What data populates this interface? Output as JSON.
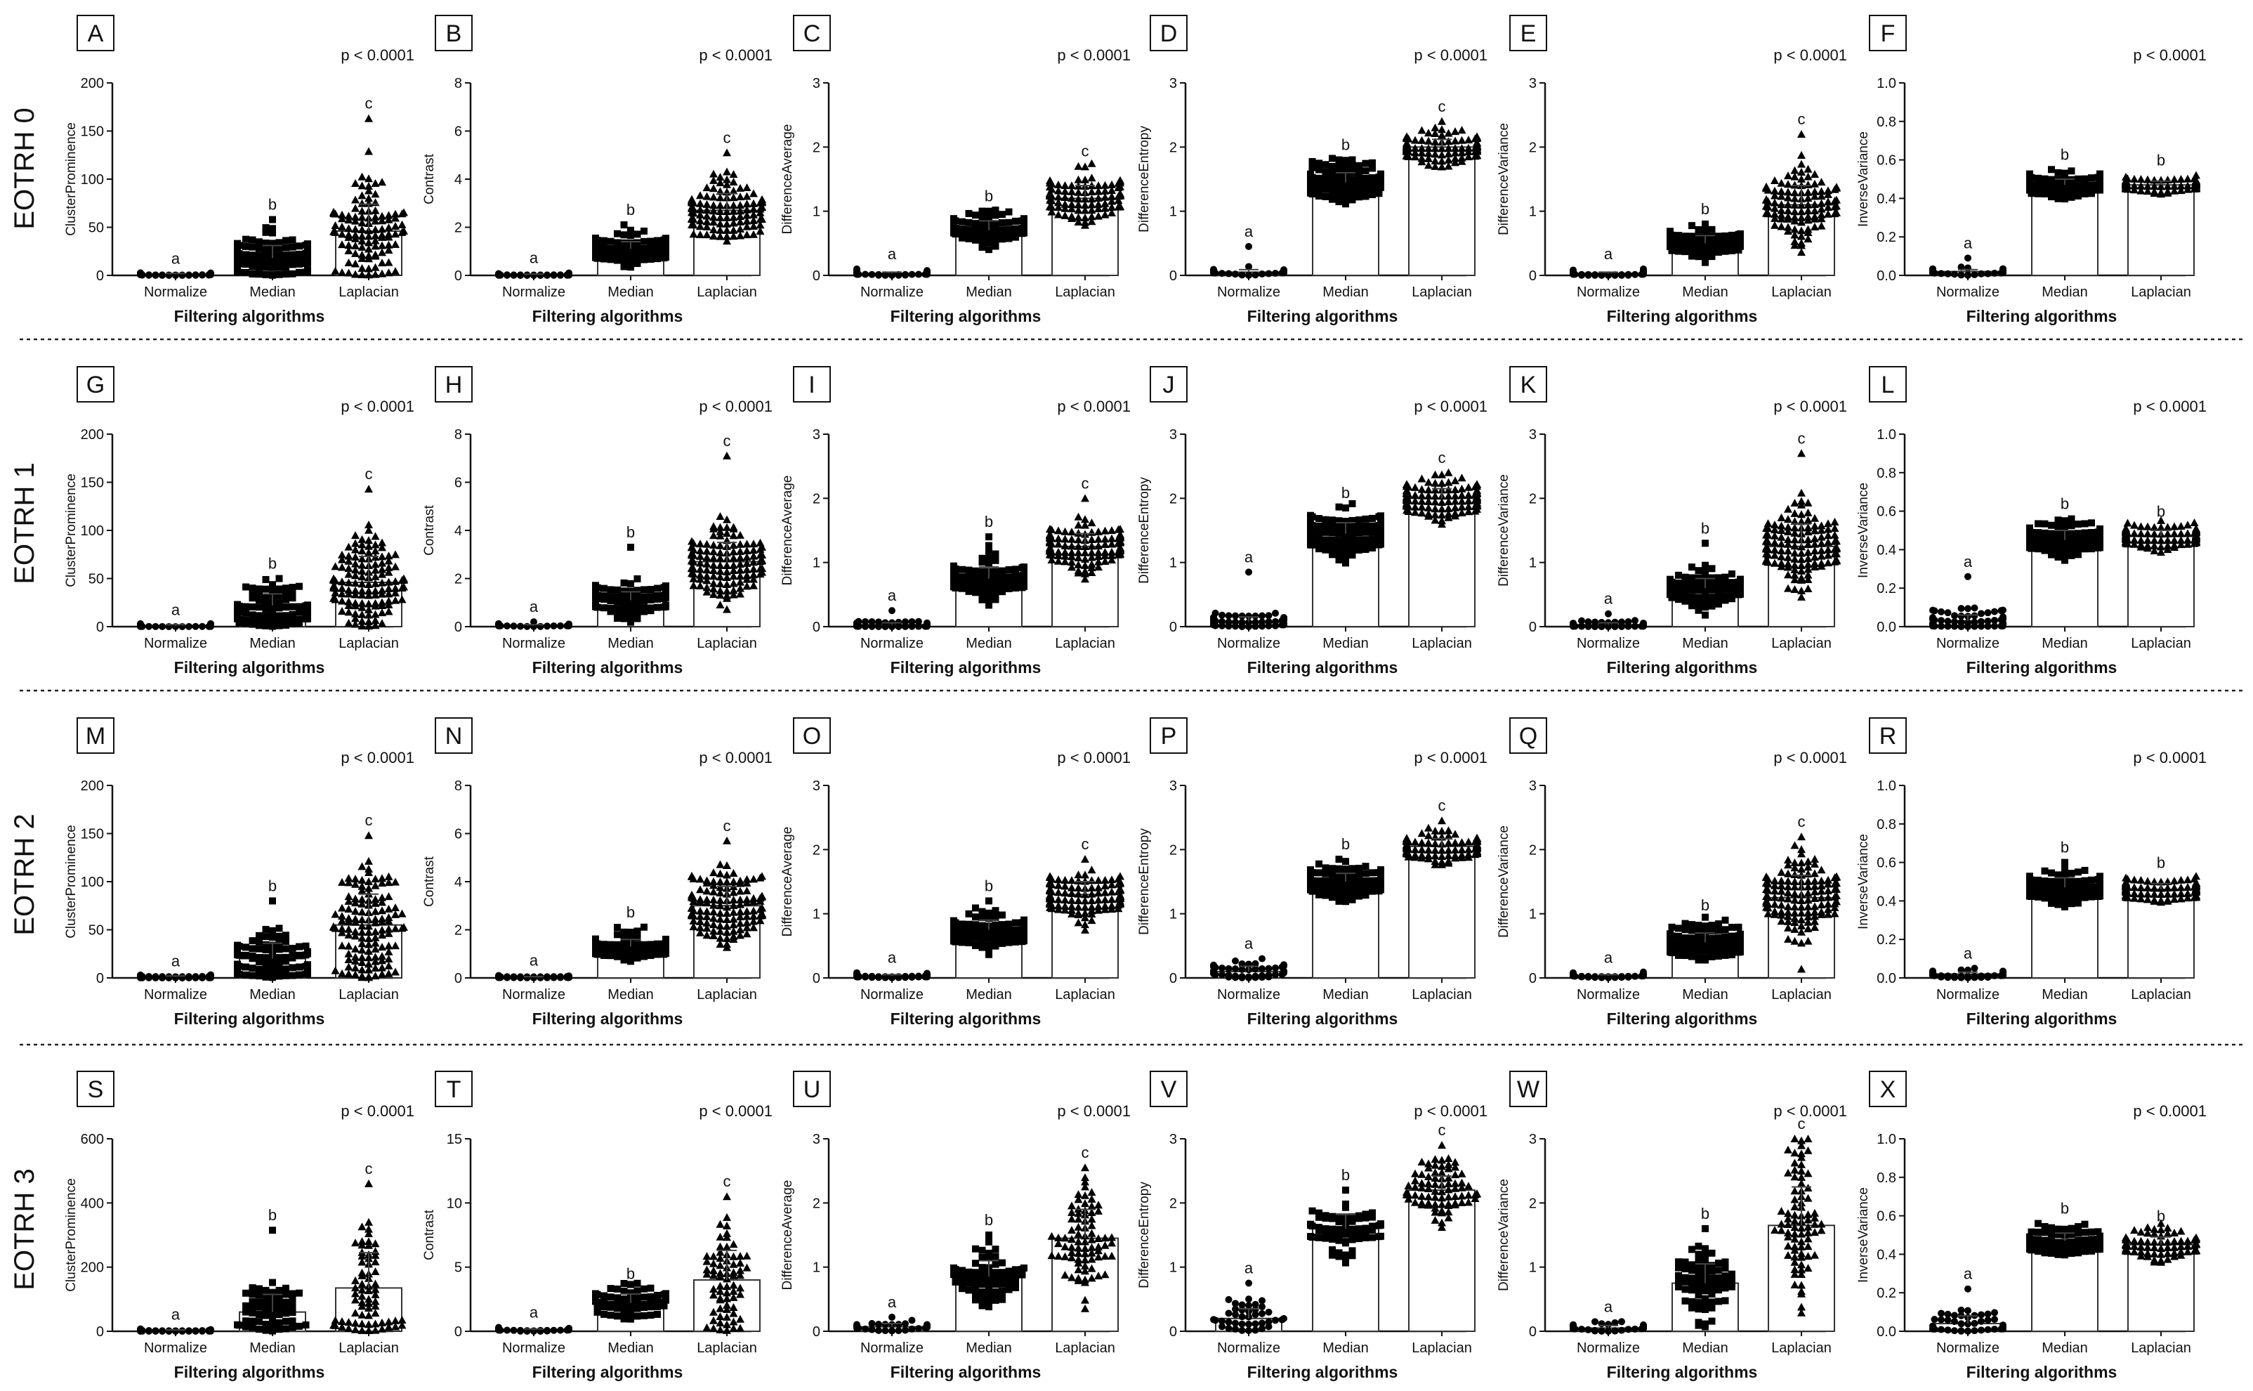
{
  "figure": {
    "row_labels": [
      "EOTRH 0",
      "EOTRH 1",
      "EOTRH 2",
      "EOTRH 3"
    ],
    "columns": [
      "ClusterProminence",
      "Contrast",
      "DifferenceAverage",
      "DifferenceEntropy",
      "DifferenceVariance",
      "InverseVariance"
    ]
  },
  "chart_data": [
    {
      "type": "scatter",
      "panel": "A",
      "title": "",
      "p_value": "p < 0.0001",
      "xlabel": "Filtering algorithms",
      "ylabel": "ClusterProminence",
      "categories": [
        "Normalize",
        "Median",
        "Laplacian"
      ],
      "ylim": [
        0,
        200
      ],
      "yticks": [
        "0",
        "50",
        "100",
        "150",
        "200"
      ],
      "means": [
        1,
        18,
        46
      ],
      "sd": [
        1,
        13,
        28
      ],
      "max_outliers": [
        2,
        58,
        163
      ],
      "n_points": [
        60,
        90,
        110
      ],
      "letters": [
        "a",
        "b",
        "c"
      ]
    },
    {
      "type": "scatter",
      "panel": "B",
      "title": "",
      "p_value": "p < 0.0001",
      "xlabel": "Filtering algorithms",
      "ylabel": "Contrast",
      "categories": [
        "Normalize",
        "Median",
        "Laplacian"
      ],
      "ylim": [
        0,
        8
      ],
      "yticks": [
        "0",
        "2",
        "4",
        "6",
        "8"
      ],
      "means": [
        0.03,
        1.1,
        2.7
      ],
      "sd": [
        0.02,
        0.3,
        0.7
      ],
      "max_outliers": [
        0.1,
        2.1,
        5.1
      ],
      "n_points": [
        60,
        90,
        110
      ],
      "letters": [
        "a",
        "b",
        "c"
      ]
    },
    {
      "type": "scatter",
      "panel": "C",
      "title": "",
      "p_value": "p < 0.0001",
      "xlabel": "Filtering algorithms",
      "ylabel": "DifferenceAverage",
      "categories": [
        "Normalize",
        "Median",
        "Laplacian"
      ],
      "ylim": [
        0,
        3
      ],
      "yticks": [
        "0",
        "1",
        "2",
        "3"
      ],
      "means": [
        0.03,
        0.7,
        1.2
      ],
      "sd": [
        0.02,
        0.15,
        0.2
      ],
      "max_outliers": [
        0.1,
        1.0,
        1.7
      ],
      "n_points": [
        60,
        90,
        110
      ],
      "letters": [
        "a",
        "b",
        "c"
      ]
    },
    {
      "type": "scatter",
      "panel": "D",
      "title": "",
      "p_value": "p < 0.0001",
      "xlabel": "Filtering algorithms",
      "ylabel": "DifferenceEntropy",
      "categories": [
        "Normalize",
        "Median",
        "Laplacian"
      ],
      "ylim": [
        0,
        3
      ],
      "yticks": [
        "0",
        "1",
        "2",
        "3"
      ],
      "means": [
        0.05,
        1.45,
        2.0
      ],
      "sd": [
        0.04,
        0.15,
        0.12
      ],
      "max_outliers": [
        0.45,
        1.8,
        2.4
      ],
      "n_points": [
        30,
        100,
        120
      ],
      "letters": [
        "a",
        "b",
        "c"
      ]
    },
    {
      "type": "scatter",
      "panel": "E",
      "title": "",
      "p_value": "p < 0.0001",
      "xlabel": "Filtering algorithms",
      "ylabel": "DifferenceVariance",
      "categories": [
        "Normalize",
        "Median",
        "Laplacian"
      ],
      "ylim": [
        0,
        3
      ],
      "yticks": [
        "0",
        "1",
        "2",
        "3"
      ],
      "means": [
        0.03,
        0.5,
        1.1
      ],
      "sd": [
        0.02,
        0.12,
        0.3
      ],
      "max_outliers": [
        0.1,
        0.8,
        2.2
      ],
      "n_points": [
        60,
        90,
        110
      ],
      "letters": [
        "a",
        "b",
        "c"
      ]
    },
    {
      "type": "scatter",
      "panel": "F",
      "title": "",
      "p_value": "p < 0.0001",
      "xlabel": "Filtering algorithms",
      "ylabel": "InverseVariance",
      "categories": [
        "Normalize",
        "Median",
        "Laplacian"
      ],
      "ylim": [
        0,
        1
      ],
      "yticks": [
        "0.0",
        "0.2",
        "0.4",
        "0.6",
        "0.8",
        "1.0"
      ],
      "means": [
        0.02,
        0.47,
        0.47
      ],
      "sd": [
        0.01,
        0.03,
        0.02
      ],
      "max_outliers": [
        0.09,
        0.55,
        0.52
      ],
      "n_points": [
        60,
        100,
        110
      ],
      "letters": [
        "a",
        "b",
        "b"
      ]
    },
    {
      "type": "scatter",
      "panel": "G",
      "title": "",
      "p_value": "p < 0.0001",
      "xlabel": "Filtering algorithms",
      "ylabel": "ClusterProminence",
      "categories": [
        "Normalize",
        "Median",
        "Laplacian"
      ],
      "ylim": [
        0,
        200
      ],
      "yticks": [
        "0",
        "50",
        "100",
        "150",
        "200"
      ],
      "means": [
        1,
        22,
        46
      ],
      "sd": [
        1,
        12,
        27
      ],
      "max_outliers": [
        2,
        50,
        143
      ],
      "n_points": [
        60,
        90,
        130
      ],
      "letters": [
        "a",
        "b",
        "c"
      ]
    },
    {
      "type": "scatter",
      "panel": "H",
      "title": "",
      "p_value": "p < 0.0001",
      "xlabel": "Filtering algorithms",
      "ylabel": "Contrast",
      "categories": [
        "Normalize",
        "Median",
        "Laplacian"
      ],
      "ylim": [
        0,
        8
      ],
      "yticks": [
        "0",
        "2",
        "4",
        "6",
        "8"
      ],
      "means": [
        0.05,
        1.1,
        2.7
      ],
      "sd": [
        0.03,
        0.35,
        0.8
      ],
      "max_outliers": [
        0.2,
        3.3,
        7.1
      ],
      "n_points": [
        60,
        90,
        130
      ],
      "letters": [
        "a",
        "b",
        "c"
      ]
    },
    {
      "type": "scatter",
      "panel": "I",
      "title": "",
      "p_value": "p < 0.0001",
      "xlabel": "Filtering algorithms",
      "ylabel": "DifferenceAverage",
      "categories": [
        "Normalize",
        "Median",
        "Laplacian"
      ],
      "ylim": [
        0,
        3
      ],
      "yticks": [
        "0",
        "1",
        "2",
        "3"
      ],
      "means": [
        0.03,
        0.75,
        1.25
      ],
      "sd": [
        0.03,
        0.18,
        0.2
      ],
      "max_outliers": [
        0.25,
        1.4,
        2.0
      ],
      "n_points": [
        60,
        100,
        130
      ],
      "letters": [
        "a",
        "b",
        "c"
      ]
    },
    {
      "type": "scatter",
      "panel": "J",
      "title": "",
      "p_value": "p < 0.0001",
      "xlabel": "Filtering algorithms",
      "ylabel": "DifferenceEntropy",
      "categories": [
        "Normalize",
        "Median",
        "Laplacian"
      ],
      "ylim": [
        0,
        3
      ],
      "yticks": [
        "0",
        "1",
        "2",
        "3"
      ],
      "means": [
        0.08,
        1.45,
        2.0
      ],
      "sd": [
        0.07,
        0.17,
        0.15
      ],
      "max_outliers": [
        0.85,
        1.85,
        2.4
      ],
      "n_points": [
        60,
        110,
        130
      ],
      "letters": [
        "a",
        "b",
        "c"
      ]
    },
    {
      "type": "scatter",
      "panel": "K",
      "title": "",
      "p_value": "p < 0.0001",
      "xlabel": "Filtering algorithms",
      "ylabel": "DifferenceVariance",
      "categories": [
        "Normalize",
        "Median",
        "Laplacian"
      ],
      "ylim": [
        0,
        3
      ],
      "yticks": [
        "0",
        "1",
        "2",
        "3"
      ],
      "means": [
        0.03,
        0.6,
        1.25
      ],
      "sd": [
        0.03,
        0.15,
        0.35
      ],
      "max_outliers": [
        0.2,
        1.3,
        2.7
      ],
      "n_points": [
        60,
        100,
        130
      ],
      "letters": [
        "a",
        "b",
        "c"
      ]
    },
    {
      "type": "scatter",
      "panel": "L",
      "title": "",
      "p_value": "p < 0.0001",
      "xlabel": "Filtering algorithms",
      "ylabel": "InverseVariance",
      "categories": [
        "Normalize",
        "Median",
        "Laplacian"
      ],
      "ylim": [
        0,
        1
      ],
      "yticks": [
        "0.0",
        "0.2",
        "0.4",
        "0.6",
        "0.8",
        "1.0"
      ],
      "means": [
        0.03,
        0.45,
        0.47
      ],
      "sd": [
        0.03,
        0.05,
        0.03
      ],
      "max_outliers": [
        0.26,
        0.56,
        0.52
      ],
      "n_points": [
        60,
        110,
        120
      ],
      "letters": [
        "a",
        "b",
        "b"
      ]
    },
    {
      "type": "scatter",
      "panel": "M",
      "title": "",
      "p_value": "p < 0.0001",
      "xlabel": "Filtering algorithms",
      "ylabel": "ClusterProminence",
      "categories": [
        "Normalize",
        "Median",
        "Laplacian"
      ],
      "ylim": [
        0,
        200
      ],
      "yticks": [
        "0",
        "50",
        "100",
        "150",
        "200"
      ],
      "means": [
        1,
        20,
        55
      ],
      "sd": [
        1,
        16,
        32
      ],
      "max_outliers": [
        2,
        80,
        148
      ],
      "n_points": [
        50,
        90,
        130
      ],
      "letters": [
        "a",
        "b",
        "c"
      ]
    },
    {
      "type": "scatter",
      "panel": "N",
      "title": "",
      "p_value": "p < 0.0001",
      "xlabel": "Filtering algorithms",
      "ylabel": "Contrast",
      "categories": [
        "Normalize",
        "Median",
        "Laplacian"
      ],
      "ylim": [
        0,
        8
      ],
      "yticks": [
        "0",
        "2",
        "4",
        "6",
        "8"
      ],
      "means": [
        0.03,
        1.3,
        3.0
      ],
      "sd": [
        0.02,
        0.3,
        0.8
      ],
      "max_outliers": [
        0.1,
        2.1,
        5.7
      ],
      "n_points": [
        50,
        90,
        130
      ],
      "letters": [
        "a",
        "b",
        "c"
      ]
    },
    {
      "type": "scatter",
      "panel": "O",
      "title": "",
      "p_value": "p < 0.0001",
      "xlabel": "Filtering algorithms",
      "ylabel": "DifferenceAverage",
      "categories": [
        "Normalize",
        "Median",
        "Laplacian"
      ],
      "ylim": [
        0,
        3
      ],
      "yticks": [
        "0",
        "1",
        "2",
        "3"
      ],
      "means": [
        0.03,
        0.75,
        1.3
      ],
      "sd": [
        0.02,
        0.15,
        0.2
      ],
      "max_outliers": [
        0.08,
        1.2,
        1.85
      ],
      "n_points": [
        50,
        100,
        130
      ],
      "letters": [
        "a",
        "b",
        "c"
      ]
    },
    {
      "type": "scatter",
      "panel": "P",
      "title": "",
      "p_value": "p < 0.0001",
      "xlabel": "Filtering algorithms",
      "ylabel": "DifferenceEntropy",
      "categories": [
        "Normalize",
        "Median",
        "Laplacian"
      ],
      "ylim": [
        0,
        3
      ],
      "yticks": [
        "0",
        "1",
        "2",
        "3"
      ],
      "means": [
        0.1,
        1.5,
        2.05
      ],
      "sd": [
        0.08,
        0.13,
        0.12
      ],
      "max_outliers": [
        0.3,
        1.85,
        2.45
      ],
      "n_points": [
        50,
        110,
        130
      ],
      "letters": [
        "a",
        "b",
        "c"
      ]
    },
    {
      "type": "scatter",
      "panel": "Q",
      "title": "",
      "p_value": "p < 0.0001",
      "xlabel": "Filtering algorithms",
      "ylabel": "DifferenceVariance",
      "categories": [
        "Normalize",
        "Median",
        "Laplacian"
      ],
      "ylim": [
        0,
        3
      ],
      "yticks": [
        "0",
        "1",
        "2",
        "3"
      ],
      "means": [
        0.03,
        0.55,
        1.25
      ],
      "sd": [
        0.02,
        0.15,
        0.35
      ],
      "max_outliers": [
        0.08,
        0.9,
        2.2
      ],
      "n_points": [
        50,
        100,
        130
      ],
      "letters": [
        "a",
        "b",
        "c"
      ]
    },
    {
      "type": "scatter",
      "panel": "R",
      "title": "",
      "p_value": "p < 0.0001",
      "xlabel": "Filtering algorithms",
      "ylabel": "InverseVariance",
      "categories": [
        "Normalize",
        "Median",
        "Laplacian"
      ],
      "ylim": [
        0,
        1
      ],
      "yticks": [
        "0.0",
        "0.2",
        "0.4",
        "0.6",
        "0.8",
        "1.0"
      ],
      "means": [
        0.02,
        0.47,
        0.46
      ],
      "sd": [
        0.01,
        0.05,
        0.03
      ],
      "max_outliers": [
        0.05,
        0.6,
        0.52
      ],
      "n_points": [
        50,
        110,
        120
      ],
      "letters": [
        "a",
        "b",
        "b"
      ]
    },
    {
      "type": "scatter",
      "panel": "S",
      "title": "",
      "p_value": "p < 0.0001",
      "xlabel": "Filtering algorithms",
      "ylabel": "ClusterProminence",
      "categories": [
        "Normalize",
        "Median",
        "Laplacian"
      ],
      "ylim": [
        0,
        600
      ],
      "yticks": [
        "0",
        "200",
        "400",
        "600"
      ],
      "means": [
        2,
        60,
        135
      ],
      "sd": [
        2,
        55,
        110
      ],
      "max_outliers": [
        5,
        315,
        460
      ],
      "n_points": [
        40,
        60,
        70
      ],
      "letters": [
        "a",
        "b",
        "c"
      ]
    },
    {
      "type": "scatter",
      "panel": "T",
      "title": "",
      "p_value": "p < 0.0001",
      "xlabel": "Filtering algorithms",
      "ylabel": "Contrast",
      "categories": [
        "Normalize",
        "Median",
        "Laplacian"
      ],
      "ylim": [
        0,
        15
      ],
      "yticks": [
        "0",
        "5",
        "10",
        "15"
      ],
      "means": [
        0.1,
        2.2,
        4.0
      ],
      "sd": [
        0.08,
        0.7,
        2.3
      ],
      "max_outliers": [
        0.3,
        3.3,
        10.5
      ],
      "n_points": [
        40,
        60,
        70
      ],
      "letters": [
        "a",
        "b",
        "c"
      ]
    },
    {
      "type": "scatter",
      "panel": "U",
      "title": "",
      "p_value": "p < 0.0001",
      "xlabel": "Filtering algorithms",
      "ylabel": "DifferenceAverage",
      "categories": [
        "Normalize",
        "Median",
        "Laplacian"
      ],
      "ylim": [
        0,
        3
      ],
      "yticks": [
        "0",
        "1",
        "2",
        "3"
      ],
      "means": [
        0.07,
        0.85,
        1.45
      ],
      "sd": [
        0.05,
        0.25,
        0.45
      ],
      "max_outliers": [
        0.22,
        1.5,
        2.55
      ],
      "n_points": [
        40,
        70,
        80
      ],
      "letters": [
        "a",
        "b",
        "c"
      ]
    },
    {
      "type": "scatter",
      "panel": "V",
      "title": "",
      "p_value": "p < 0.0001",
      "xlabel": "Filtering algorithms",
      "ylabel": "DifferenceEntropy",
      "categories": [
        "Normalize",
        "Median",
        "Laplacian"
      ],
      "ylim": [
        0,
        3
      ],
      "yticks": [
        "0",
        "1",
        "2",
        "3"
      ],
      "means": [
        0.2,
        1.6,
        2.2
      ],
      "sd": [
        0.15,
        0.22,
        0.22
      ],
      "max_outliers": [
        0.75,
        2.2,
        2.9
      ],
      "n_points": [
        40,
        70,
        80
      ],
      "letters": [
        "a",
        "b",
        "c"
      ]
    },
    {
      "type": "scatter",
      "panel": "W",
      "title": "",
      "p_value": "p < 0.0001",
      "xlabel": "Filtering algorithms",
      "ylabel": "DifferenceVariance",
      "categories": [
        "Normalize",
        "Median",
        "Laplacian"
      ],
      "ylim": [
        0,
        3
      ],
      "yticks": [
        "0",
        "1",
        "2",
        "3"
      ],
      "means": [
        0.05,
        0.75,
        1.65
      ],
      "sd": [
        0.04,
        0.3,
        0.6
      ],
      "max_outliers": [
        0.15,
        1.6,
        3.0
      ],
      "n_points": [
        40,
        70,
        80
      ],
      "letters": [
        "a",
        "b",
        "c"
      ]
    },
    {
      "type": "scatter",
      "panel": "X",
      "title": "",
      "p_value": "p < 0.0001",
      "xlabel": "Filtering algorithms",
      "ylabel": "InverseVariance",
      "categories": [
        "Normalize",
        "Median",
        "Laplacian"
      ],
      "ylim": [
        0,
        1
      ],
      "yticks": [
        "0.0",
        "0.2",
        "0.4",
        "0.6",
        "0.8",
        "1.0"
      ],
      "means": [
        0.04,
        0.47,
        0.45
      ],
      "sd": [
        0.04,
        0.04,
        0.04
      ],
      "max_outliers": [
        0.22,
        0.56,
        0.52
      ],
      "n_points": [
        40,
        70,
        80
      ],
      "letters": [
        "a",
        "b",
        "b"
      ]
    }
  ]
}
